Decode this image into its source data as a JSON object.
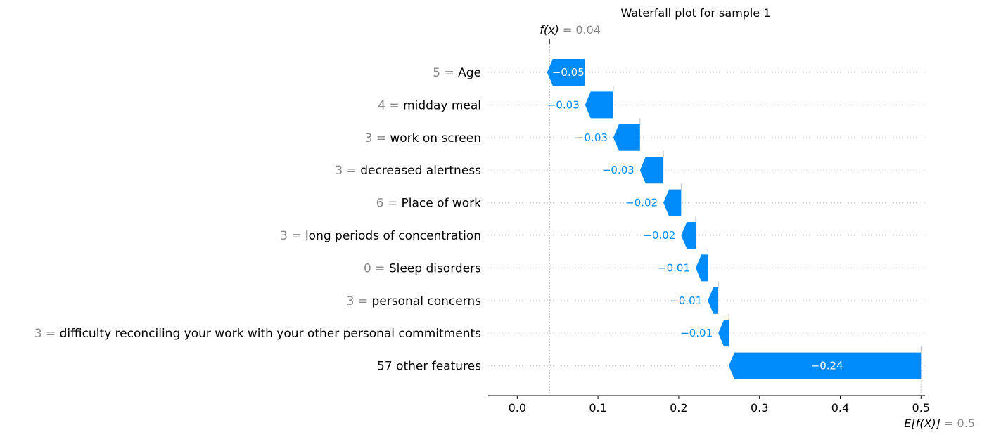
{
  "chart_data": {
    "type": "waterfall",
    "title": "Waterfall plot for sample 1",
    "fx": {
      "label": "f(x)",
      "value_text": "0.04",
      "value": 0.04
    },
    "efx": {
      "label": "E[f(X)]",
      "value_text": "0.5",
      "value": 0.5
    },
    "xlim": [
      -0.036,
      0.505
    ],
    "x_ticks": [
      0.0,
      0.1,
      0.2,
      0.3,
      0.4,
      0.5
    ],
    "x_tick_labels": [
      "0.0",
      "0.1",
      "0.2",
      "0.3",
      "0.4",
      "0.5"
    ],
    "features": [
      {
        "value": "5",
        "name": "Age",
        "shap": -0.047,
        "shap_label": "−0.05"
      },
      {
        "value": "4",
        "name": "midday meal",
        "shap": -0.035,
        "shap_label": "−0.03"
      },
      {
        "value": "3",
        "name": "work on screen",
        "shap": -0.033,
        "shap_label": "−0.03"
      },
      {
        "value": "3",
        "name": "decreased alertness",
        "shap": -0.029,
        "shap_label": "−0.03"
      },
      {
        "value": "6",
        "name": "Place of work",
        "shap": -0.022,
        "shap_label": "−0.02"
      },
      {
        "value": "3",
        "name": "long periods of concentration",
        "shap": -0.018,
        "shap_label": "−0.02"
      },
      {
        "value": "0",
        "name": "Sleep disorders",
        "shap": -0.015,
        "shap_label": "−0.01"
      },
      {
        "value": "3",
        "name": "personal concerns",
        "shap": -0.013,
        "shap_label": "−0.01"
      },
      {
        "value": "3",
        "name": "difficulty reconciling your work with your other personal commitments",
        "shap": -0.013,
        "shap_label": "−0.01"
      },
      {
        "value": "",
        "name": "57 other features",
        "shap": -0.238,
        "shap_label": "−0.24"
      }
    ],
    "colors": {
      "negative": "#008bfb",
      "value_text": "#888888",
      "grid": "#cccccc"
    }
  }
}
